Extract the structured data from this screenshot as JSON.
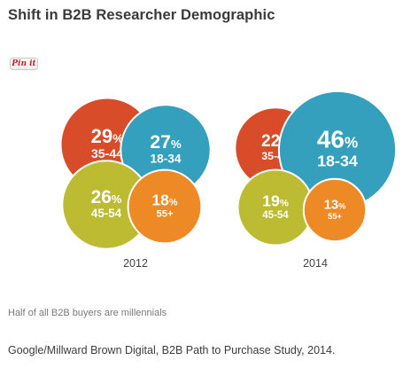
{
  "title": "Shift in B2B Researcher Demographic",
  "pin_button_label": "Pin it",
  "caption": "Half of all B2B buyers are millennials",
  "source": "Google/Millward Brown Digital, B2B Path to Purchase Study, 2014.",
  "chart_data": [
    {
      "type": "bubble",
      "year_label": "2012",
      "unit": "%",
      "series": [
        {
          "name": "35-44",
          "value": 29,
          "color": "#d84c2a"
        },
        {
          "name": "18-34",
          "value": 27,
          "color": "#35a0bd"
        },
        {
          "name": "45-54",
          "value": 26,
          "color": "#bcbb32"
        },
        {
          "name": "55+",
          "value": 18,
          "color": "#ee8a26"
        }
      ]
    },
    {
      "type": "bubble",
      "year_label": "2014",
      "unit": "%",
      "series": [
        {
          "name": "35-44",
          "value": 22,
          "color": "#d84c2a"
        },
        {
          "name": "18-34",
          "value": 46,
          "color": "#35a0bd"
        },
        {
          "name": "45-54",
          "value": 19,
          "color": "#bcbb32"
        },
        {
          "name": "55+",
          "value": 13,
          "color": "#ee8a26"
        }
      ]
    }
  ]
}
